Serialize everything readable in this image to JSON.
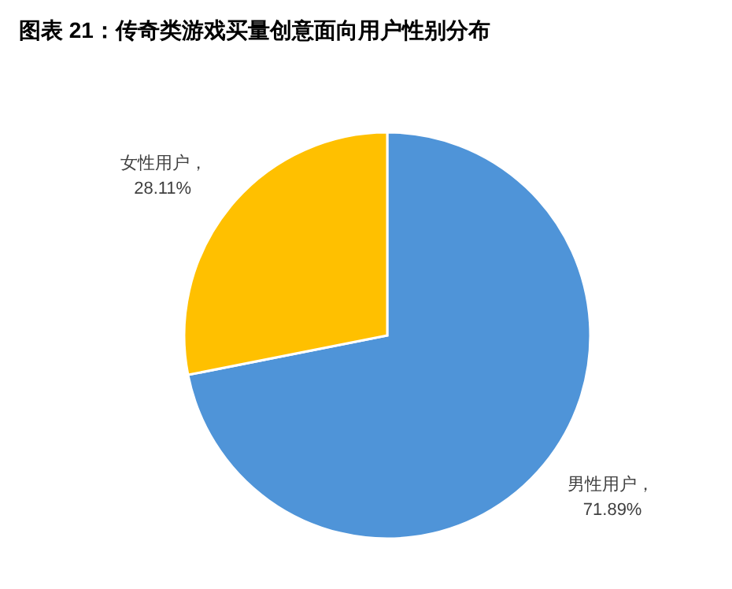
{
  "chart_data": {
    "type": "pie",
    "title": "图表 21：传奇类游戏买量创意面向用户性别分布",
    "categories": [
      "男性用户",
      "女性用户"
    ],
    "values": [
      71.89,
      28.11
    ],
    "value_labels": [
      "，\n71.89%",
      "，\n28.11%"
    ],
    "colors": [
      "#4f94d8",
      "#ffc000"
    ],
    "legend": false
  }
}
